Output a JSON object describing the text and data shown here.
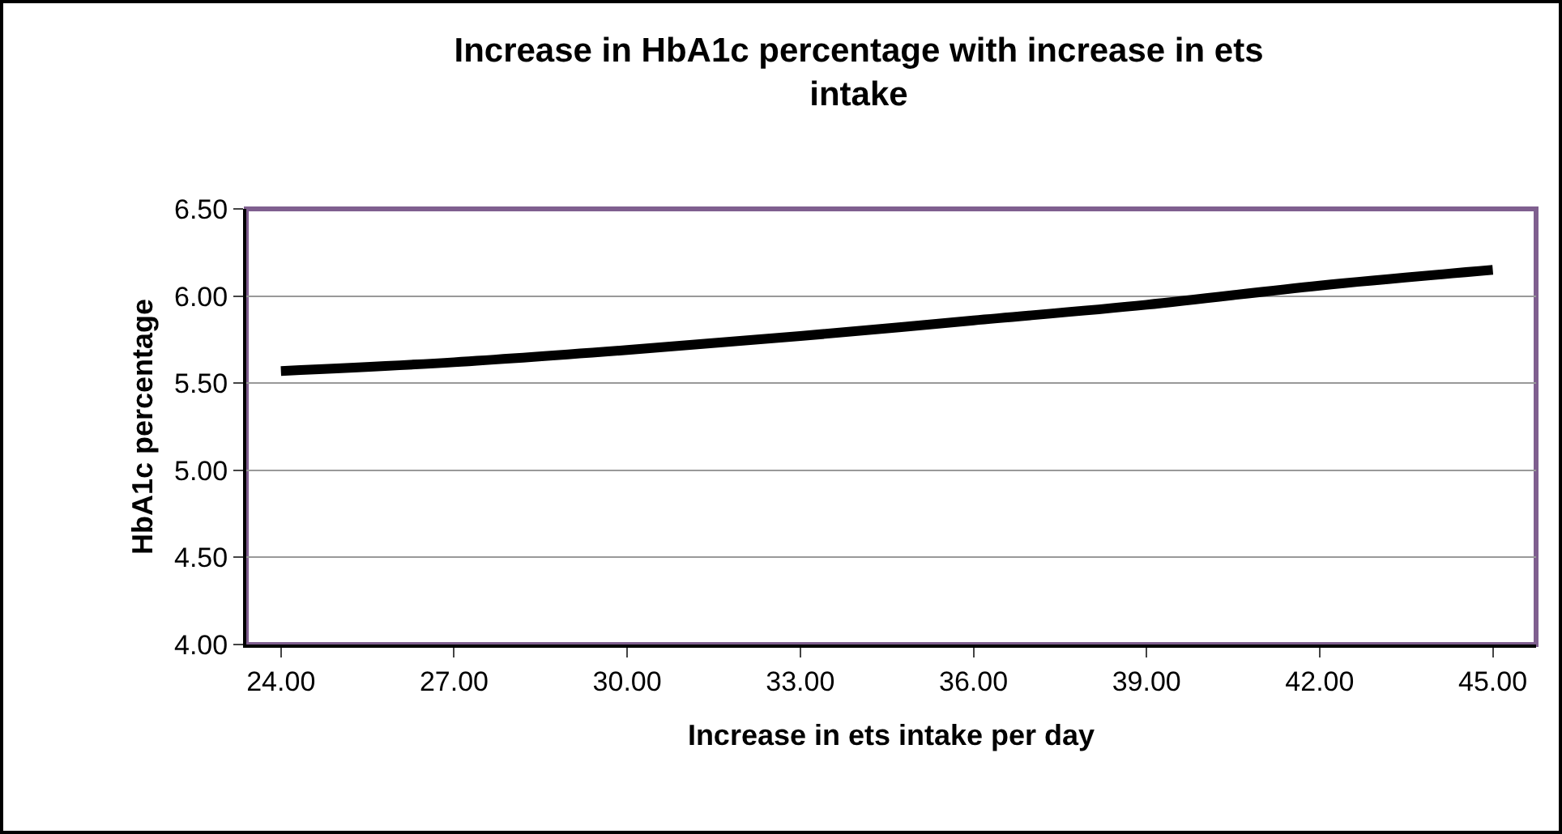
{
  "chart_data": {
    "type": "line",
    "title": "Increase in HbA1c percentage with increase in ets intake",
    "xlabel": "Increase in ets intake per day",
    "ylabel": "HbA1c percentage",
    "categories": [
      "24.00",
      "27.00",
      "30.00",
      "33.00",
      "36.00",
      "39.00",
      "42.00",
      "45.00"
    ],
    "series": [
      {
        "color": "#000000",
        "values": [
          5.57,
          5.62,
          5.69,
          5.77,
          5.86,
          5.95,
          6.06,
          6.15
        ]
      }
    ],
    "ylim": [
      4.0,
      6.5
    ],
    "yticks": [
      {
        "value": 4,
        "label": "4.00"
      },
      {
        "value": 4.5,
        "label": "4.50"
      },
      {
        "value": 5,
        "label": "5.00"
      },
      {
        "value": 5.5,
        "label": "5.50"
      },
      {
        "value": 6,
        "label": "6.00"
      },
      {
        "value": 6.5,
        "label": "6.50"
      }
    ],
    "grid": "y",
    "marker": "none",
    "line_style": "solid"
  }
}
